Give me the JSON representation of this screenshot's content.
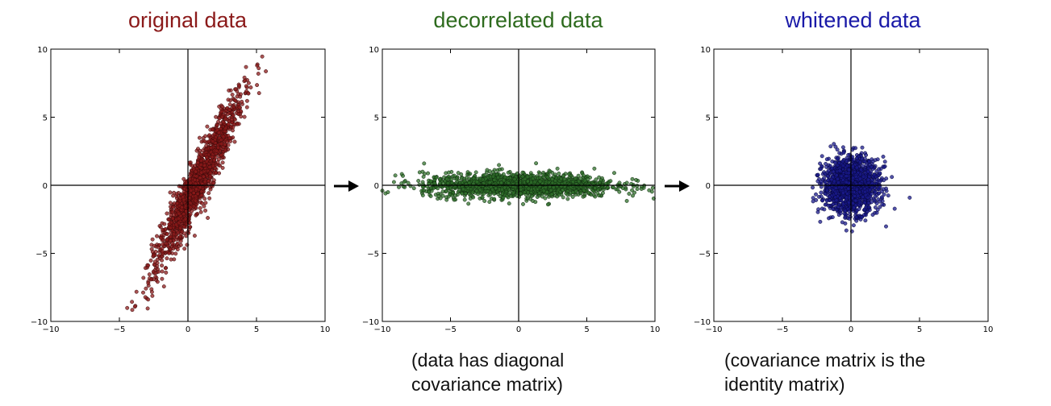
{
  "panels": [
    {
      "title": "original data",
      "title_color": "#8b1a1a",
      "point_fill": "#8b1a1a",
      "point_edge": "#3a0a0a"
    },
    {
      "title": "decorrelated data",
      "title_color": "#2e6b1e",
      "point_fill": "#2f6f2a",
      "point_edge": "#0e2a0e"
    },
    {
      "title": "whitened data",
      "title_color": "#1a1aa8",
      "point_fill": "#1a1a8c",
      "point_edge": "#06063a"
    }
  ],
  "captions": {
    "decorrelated": [
      "(data has diagonal",
      "covariance matrix)"
    ],
    "whitened": [
      "(covariance matrix is the",
      "identity matrix)"
    ]
  },
  "arrow_color": "#000000",
  "chart_data": [
    {
      "type": "scatter",
      "title": "original data",
      "xlim": [
        -10,
        10
      ],
      "ylim": [
        -10,
        10
      ],
      "xticks": [
        "−10",
        "−5",
        "0",
        "5",
        "10"
      ],
      "yticks": [
        "10",
        "5",
        "0",
        "−5",
        "−10"
      ],
      "grid": false,
      "distribution": {
        "mean": [
          0.7,
          0.2
        ],
        "std_major": 3.5,
        "std_minor": 0.45,
        "angle_deg": 64,
        "n": 1500
      },
      "sample_points": [
        [
          -3.5,
          -9.2
        ],
        [
          -2.4,
          -7.5
        ],
        [
          -1.5,
          -5.5
        ],
        [
          0,
          -2
        ],
        [
          1,
          0.5
        ],
        [
          2,
          3
        ],
        [
          3,
          5
        ],
        [
          4,
          6.5
        ],
        [
          4.5,
          7.5
        ]
      ]
    },
    {
      "type": "scatter",
      "title": "decorrelated data",
      "xlim": [
        -10,
        10
      ],
      "ylim": [
        -10,
        10
      ],
      "xticks": [
        "−10",
        "−5",
        "0",
        "5",
        "10"
      ],
      "yticks": [
        "10",
        "5",
        "0",
        "−5",
        "−10"
      ],
      "grid": false,
      "distribution": {
        "mean": [
          0,
          0
        ],
        "std_major": 3.5,
        "std_minor": 0.45,
        "angle_deg": 0,
        "n": 1500
      },
      "sample_points": [
        [
          -9,
          0
        ],
        [
          -5,
          0.3
        ],
        [
          0,
          0
        ],
        [
          4,
          -0.5
        ],
        [
          8,
          0.8
        ]
      ]
    },
    {
      "type": "scatter",
      "title": "whitened data",
      "xlim": [
        -10,
        10
      ],
      "ylim": [
        -10,
        10
      ],
      "xticks": [
        "−10",
        "−5",
        "0",
        "5",
        "10"
      ],
      "yticks": [
        "10",
        "5",
        "0",
        "−5",
        "−10"
      ],
      "grid": false,
      "distribution": {
        "mean": [
          0,
          0
        ],
        "std_major": 1,
        "std_minor": 1,
        "angle_deg": 0,
        "n": 1500
      },
      "sample_points": [
        [
          -3.8,
          0.5
        ],
        [
          0,
          3
        ],
        [
          0,
          -3
        ],
        [
          3.5,
          0
        ]
      ]
    }
  ]
}
